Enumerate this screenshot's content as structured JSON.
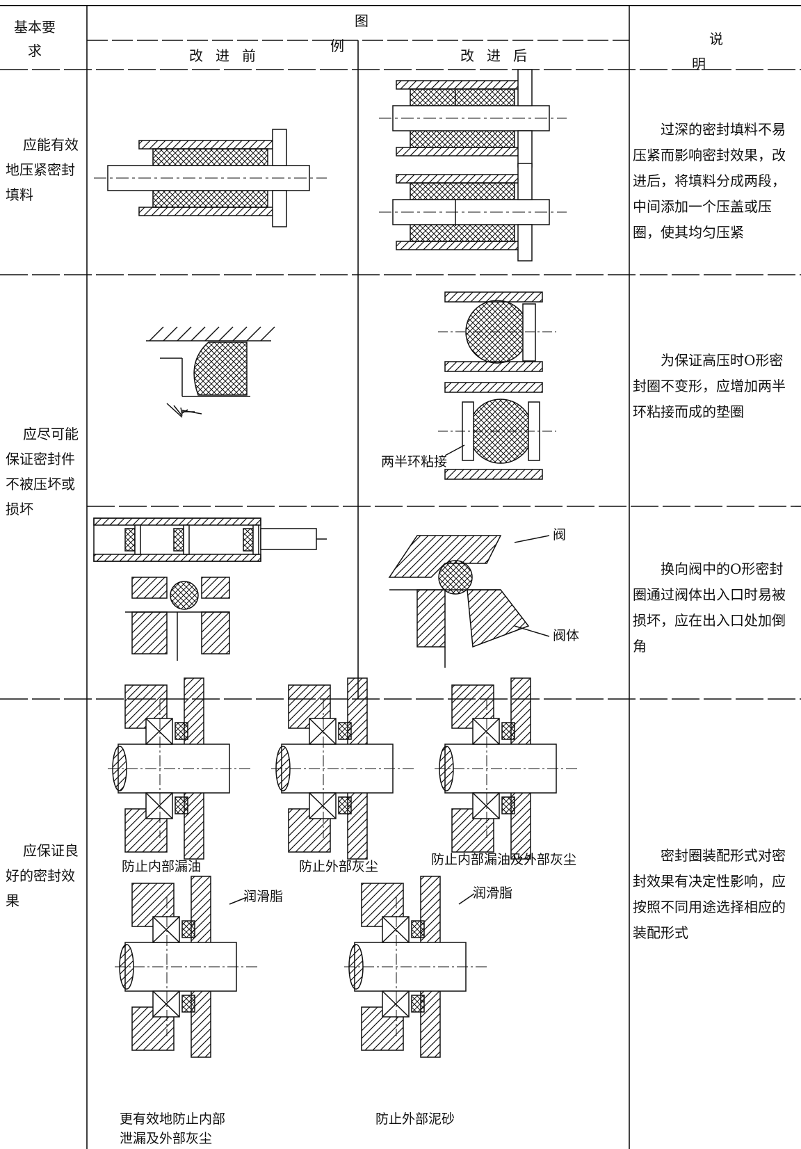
{
  "header": {
    "requirement": "基本要求",
    "illustration": "图例",
    "before": "改进前",
    "after": "改进后",
    "description": "说明"
  },
  "rows": [
    {
      "requirement": "应能有效地压紧密封填料",
      "description": "过深的密封填料不易压紧而影响密封效果，改进后，将填料分成两段，中间添加一个压盖或压圈，使其均匀压紧"
    },
    {
      "requirement": "应尽可能保证密封件不被压坏或损坏",
      "cases": [
        {
          "labels": [
            "两半环粘接"
          ],
          "description": "为保证高压时O形密封圈不变形，应增加两半环粘接而成的垫圈"
        },
        {
          "labels": [
            "阀",
            "阀体"
          ],
          "description": "换向阀中的O形密封圈通过阀体出入口时易被损坏，应在出入口处加倒角"
        }
      ]
    },
    {
      "requirement": "应保证良好的密封效果",
      "captions": [
        "防止内部漏油",
        "防止外部灰尘",
        "防止内部漏油及外部灰尘",
        "更有效地防止内部泄漏及外部灰尘",
        "防止外部泥砂"
      ],
      "callouts": [
        "润滑脂",
        "润滑脂"
      ],
      "description": "密封圈装配形式对密封效果有决定性影响，应按照不同用途选择相应的装配形式"
    }
  ]
}
